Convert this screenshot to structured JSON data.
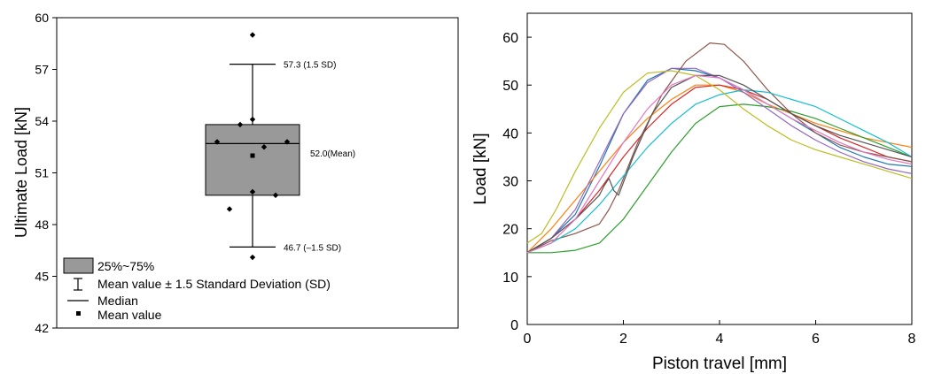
{
  "chart_data": [
    {
      "type": "box",
      "ylabel": "Ultimate Load [kN]",
      "ylim": [
        42,
        60
      ],
      "yticks": [
        "42",
        "45",
        "48",
        "51",
        "54",
        "57",
        "60"
      ],
      "grid": false,
      "box": {
        "q1": 49.7,
        "q3": 53.8,
        "median": 52.7,
        "mean": 52.0,
        "whisker_low": 46.7,
        "whisker_high": 57.3
      },
      "points": [
        59.0,
        54.1,
        53.8,
        52.8,
        52.8,
        52.5,
        49.9,
        49.7,
        48.9,
        46.1
      ],
      "annotations": {
        "upper": "57.3 (1.5 SD)",
        "mean": "52.0(Mean)",
        "lower": "46.7 (–1.5 SD)"
      },
      "legend": [
        {
          "symbol": "box",
          "label": "25%~75%"
        },
        {
          "symbol": "whisker",
          "label": "Mean value ± 1.5 Standard Deviation (SD)"
        },
        {
          "symbol": "line",
          "label": "Median"
        },
        {
          "symbol": "square",
          "label": "Mean value"
        }
      ],
      "legend_position": "bottom-left",
      "colors": {
        "box_fill": "#999999"
      }
    },
    {
      "type": "line",
      "xlabel": "Piston travel [mm]",
      "ylabel": "Load [kN]",
      "xlim": [
        0,
        8
      ],
      "ylim": [
        0,
        65
      ],
      "xticks": [
        "0",
        "2",
        "4",
        "6",
        "8"
      ],
      "yticks": [
        "0",
        "10",
        "20",
        "30",
        "40",
        "50",
        "60"
      ],
      "grid": false,
      "series": [
        {
          "color": "#1f77b4",
          "points": [
            [
              0,
              15
            ],
            [
              0.5,
              18
            ],
            [
              1,
              23
            ],
            [
              1.5,
              33
            ],
            [
              2,
              44
            ],
            [
              2.5,
              51
            ],
            [
              3,
              53.5
            ],
            [
              3.5,
              53
            ],
            [
              4,
              51.5
            ],
            [
              4.5,
              49
            ],
            [
              5,
              46
            ],
            [
              5.5,
              43
            ],
            [
              6,
              40
            ],
            [
              6.5,
              37
            ],
            [
              7,
              35
            ],
            [
              7.5,
              33.5
            ],
            [
              8,
              33
            ]
          ]
        },
        {
          "color": "#ff7f0e",
          "points": [
            [
              0,
              15
            ],
            [
              0.5,
              20
            ],
            [
              1,
              26
            ],
            [
              1.5,
              32
            ],
            [
              2,
              38
            ],
            [
              2.5,
              43
            ],
            [
              3,
              47
            ],
            [
              3.5,
              50
            ],
            [
              4,
              50
            ],
            [
              4.5,
              48.5
            ],
            [
              5,
              46
            ],
            [
              5.5,
              44
            ],
            [
              6,
              42
            ],
            [
              6.5,
              40.5
            ],
            [
              7,
              39
            ],
            [
              7.5,
              38
            ],
            [
              8,
              37
            ]
          ]
        },
        {
          "color": "#2ca02c",
          "points": [
            [
              0,
              15
            ],
            [
              0.5,
              15
            ],
            [
              1,
              15.5
            ],
            [
              1.5,
              17
            ],
            [
              2,
              22
            ],
            [
              2.5,
              29
            ],
            [
              3,
              36
            ],
            [
              3.5,
              42
            ],
            [
              4,
              45.5
            ],
            [
              4.5,
              46
            ],
            [
              5,
              45.5
            ],
            [
              5.5,
              44.5
            ],
            [
              6,
              43
            ],
            [
              6.5,
              41
            ],
            [
              7,
              39
            ],
            [
              7.5,
              37
            ],
            [
              8,
              35
            ]
          ]
        },
        {
          "color": "#d62728",
          "points": [
            [
              0,
              15
            ],
            [
              0.5,
              18
            ],
            [
              1,
              22
            ],
            [
              1.5,
              28
            ],
            [
              2,
              35
            ],
            [
              2.5,
              41
            ],
            [
              3,
              46
            ],
            [
              3.5,
              49.5
            ],
            [
              4,
              50
            ],
            [
              4.5,
              49
            ],
            [
              5,
              47
            ],
            [
              5.5,
              44
            ],
            [
              6,
              41.5
            ],
            [
              6.5,
              39
            ],
            [
              7,
              37
            ],
            [
              7.5,
              35
            ],
            [
              8,
              34
            ]
          ]
        },
        {
          "color": "#9467bd",
          "points": [
            [
              0,
              15
            ],
            [
              0.5,
              18
            ],
            [
              1,
              24
            ],
            [
              1.5,
              34
            ],
            [
              2,
              44
            ],
            [
              2.5,
              50.5
            ],
            [
              3,
              53.5
            ],
            [
              3.5,
              53.5
            ],
            [
              4,
              51.5
            ],
            [
              4.5,
              48.5
            ],
            [
              5,
              45
            ],
            [
              5.5,
              41.5
            ],
            [
              6,
              38.5
            ],
            [
              6.5,
              36
            ],
            [
              7,
              34
            ],
            [
              7.5,
              32.5
            ],
            [
              8,
              31.5
            ]
          ]
        },
        {
          "color": "#8c564b",
          "points": [
            [
              0,
              15
            ],
            [
              0.5,
              17.5
            ],
            [
              1,
              19
            ],
            [
              1.5,
              21
            ],
            [
              1.7,
              24
            ],
            [
              1.9,
              28
            ],
            [
              2.3,
              38
            ],
            [
              2.8,
              48
            ],
            [
              3.3,
              55
            ],
            [
              3.8,
              58.8
            ],
            [
              4.1,
              58.5
            ],
            [
              4.5,
              55
            ],
            [
              5,
              49
            ],
            [
              5.5,
              44
            ],
            [
              6,
              40
            ],
            [
              6.5,
              37.5
            ],
            [
              7,
              36
            ],
            [
              7.5,
              35
            ],
            [
              8,
              34
            ]
          ]
        },
        {
          "color": "#17becf",
          "points": [
            [
              0,
              15
            ],
            [
              0.5,
              17
            ],
            [
              1,
              20
            ],
            [
              1.5,
              25
            ],
            [
              2,
              31
            ],
            [
              2.5,
              37
            ],
            [
              3,
              42
            ],
            [
              3.5,
              46
            ],
            [
              4,
              48
            ],
            [
              4.5,
              49
            ],
            [
              5,
              48.5
            ],
            [
              5.5,
              47
            ],
            [
              6,
              45.5
            ],
            [
              6.5,
              43
            ],
            [
              7,
              40.5
            ],
            [
              7.5,
              38
            ],
            [
              8,
              35
            ]
          ]
        },
        {
          "color": "#bcbd22",
          "points": [
            [
              0,
              17
            ],
            [
              0.3,
              19
            ],
            [
              0.6,
              24
            ],
            [
              1,
              32
            ],
            [
              1.5,
              41
            ],
            [
              2,
              48.5
            ],
            [
              2.5,
              52.5
            ],
            [
              3,
              53
            ],
            [
              3.5,
              52
            ],
            [
              4,
              49
            ],
            [
              4.5,
              45
            ],
            [
              5,
              41.5
            ],
            [
              5.5,
              38.5
            ],
            [
              6,
              36.5
            ],
            [
              6.5,
              35
            ],
            [
              7,
              33.5
            ],
            [
              7.5,
              32
            ],
            [
              8,
              30.5
            ]
          ]
        },
        {
          "color": "#555555",
          "points": [
            [
              0,
              15
            ],
            [
              0.5,
              18
            ],
            [
              1,
              22
            ],
            [
              1.5,
              27
            ],
            [
              1.6,
              29
            ],
            [
              1.7,
              30.5
            ],
            [
              1.8,
              28
            ],
            [
              1.9,
              27
            ],
            [
              2.2,
              35
            ],
            [
              2.6,
              44
            ],
            [
              3,
              49.5
            ],
            [
              3.5,
              52
            ],
            [
              4,
              52
            ],
            [
              4.5,
              50
            ],
            [
              5,
              47
            ],
            [
              5.5,
              44
            ],
            [
              6,
              41.5
            ],
            [
              6.5,
              39.5
            ],
            [
              7,
              38
            ],
            [
              7.5,
              36.5
            ],
            [
              8,
              35
            ]
          ]
        },
        {
          "color": "#e377c2",
          "points": [
            [
              0,
              15
            ],
            [
              0.5,
              17
            ],
            [
              1,
              22
            ],
            [
              1.5,
              30
            ],
            [
              2,
              38
            ],
            [
              2.5,
              45
            ],
            [
              3,
              50
            ],
            [
              3.5,
              52
            ],
            [
              4,
              51.5
            ],
            [
              4.5,
              49
            ],
            [
              5,
              46
            ],
            [
              5.5,
              43
            ],
            [
              6,
              40.5
            ],
            [
              6.5,
              38
            ],
            [
              7,
              36
            ],
            [
              7.5,
              34.5
            ],
            [
              8,
              33.5
            ]
          ]
        }
      ]
    }
  ]
}
